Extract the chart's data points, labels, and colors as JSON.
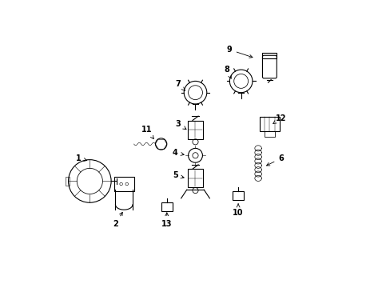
{
  "background_color": "#ffffff",
  "line_color": "#000000",
  "fig_width": 4.89,
  "fig_height": 3.6,
  "dpi": 100,
  "labels_info": [
    [
      1,
      0.09,
      0.45,
      0.13,
      0.44
    ],
    [
      2,
      0.22,
      0.22,
      0.25,
      0.27
    ],
    [
      3,
      0.44,
      0.57,
      0.47,
      0.55
    ],
    [
      4,
      0.43,
      0.47,
      0.47,
      0.46
    ],
    [
      5,
      0.43,
      0.39,
      0.47,
      0.38
    ],
    [
      6,
      0.8,
      0.45,
      0.74,
      0.42
    ],
    [
      7,
      0.44,
      0.71,
      0.47,
      0.68
    ],
    [
      8,
      0.61,
      0.76,
      0.63,
      0.72
    ],
    [
      9,
      0.62,
      0.83,
      0.71,
      0.8
    ],
    [
      10,
      0.65,
      0.26,
      0.65,
      0.3
    ],
    [
      11,
      0.33,
      0.55,
      0.36,
      0.51
    ],
    [
      12,
      0.8,
      0.59,
      0.77,
      0.57
    ],
    [
      13,
      0.4,
      0.22,
      0.4,
      0.27
    ]
  ]
}
